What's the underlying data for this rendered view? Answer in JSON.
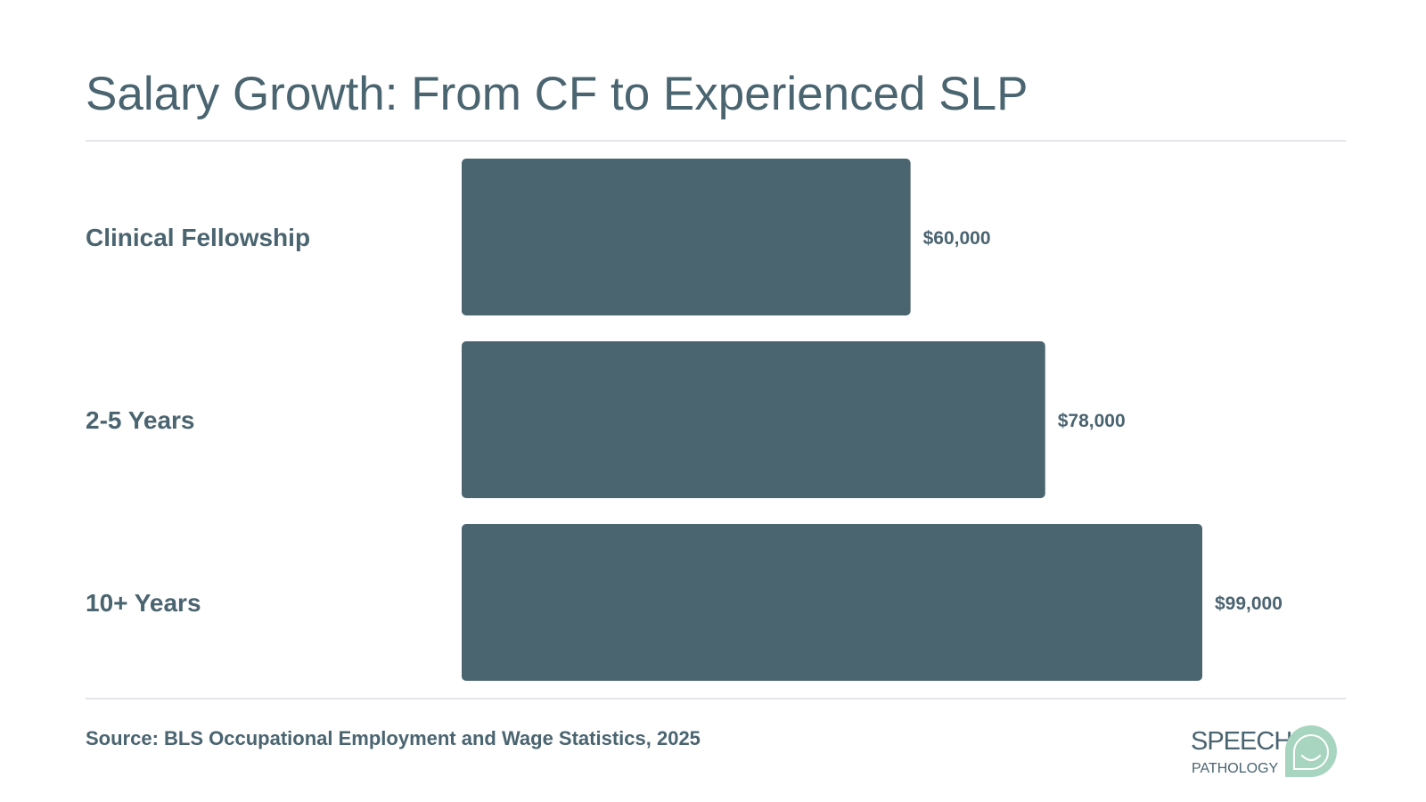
{
  "colors": {
    "text": "#4a6470",
    "bar": "#4a6470",
    "rule": "#e3e6e8",
    "logo_green": "#a8d5bf",
    "background": "#ffffff"
  },
  "chart_data": {
    "type": "bar",
    "orientation": "horizontal",
    "title": "Salary Growth: From CF to Experienced SLP",
    "categories": [
      "Clinical Fellowship",
      "2-5 Years",
      "10+ Years"
    ],
    "values": [
      60000,
      78000,
      99000
    ],
    "value_labels": [
      "$60,000",
      "$78,000",
      "$99,000"
    ],
    "xlim": [
      0,
      99000
    ],
    "grid": false,
    "legend": "none"
  },
  "source": "Source: BLS Occupational Employment and Wage Statistics, 2025",
  "logo": {
    "word1": "SPEECH",
    "word2": "PATHOLOGY",
    "icon": "speech-bubble-smile-icon"
  }
}
